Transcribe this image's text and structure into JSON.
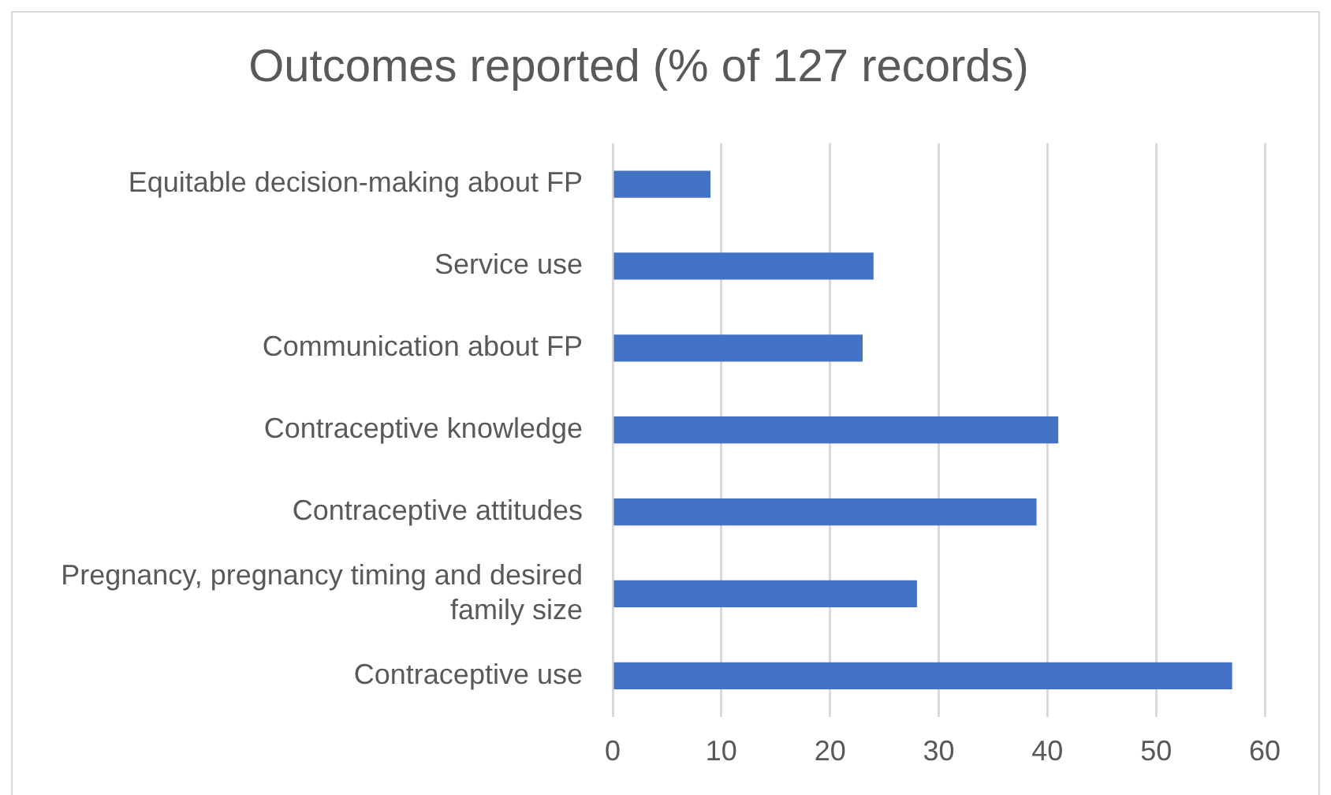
{
  "chart_data": {
    "type": "bar",
    "orientation": "horizontal",
    "title": "Outcomes reported (% of 127 records)",
    "categories": [
      "Equitable decision-making about FP",
      "Service use",
      "Communication about FP",
      "Contraceptive knowledge",
      "Contraceptive attitudes",
      "Pregnancy, pregnancy timing and desired family size",
      "Contraceptive use"
    ],
    "values": [
      9,
      24,
      23,
      41,
      39,
      28,
      57
    ],
    "color": "#4472c4",
    "xlim": [
      0,
      60
    ],
    "xticks": [
      0,
      10,
      20,
      30,
      40,
      50,
      60
    ],
    "grid": "x"
  }
}
